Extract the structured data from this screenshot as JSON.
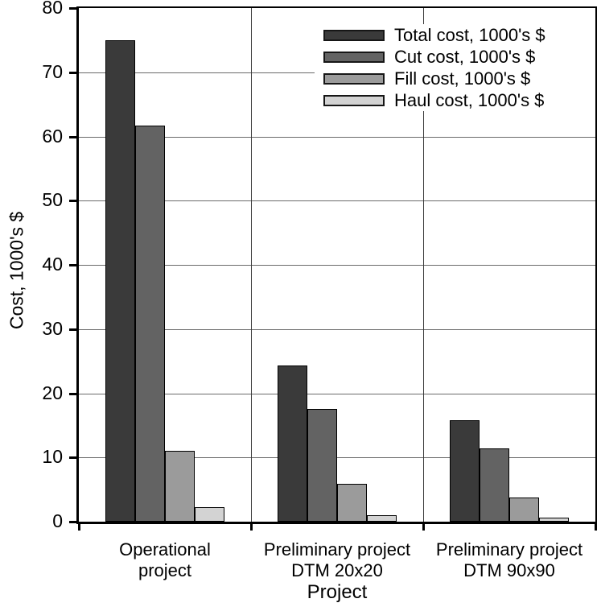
{
  "chart_data": {
    "type": "bar",
    "title": "",
    "xlabel": "Project",
    "ylabel": "Cost, 1000's $",
    "ylim": [
      0,
      80
    ],
    "ytick_step": 10,
    "grid": "horizontal",
    "legend_position": "top-right-inside",
    "background_color": "#ffffff",
    "categories": [
      [
        "Operational",
        "project"
      ],
      [
        "Preliminary project",
        "DTM 20x20"
      ],
      [
        "Preliminary project",
        "DTM 90x90"
      ]
    ],
    "series": [
      {
        "name": "Total cost, 1000's $",
        "slug": "total-cost",
        "color": "#3a3a3a",
        "values": [
          75.0,
          24.3,
          15.8
        ]
      },
      {
        "name": "Cut cost, 1000's $",
        "slug": "cut-cost",
        "color": "#636363",
        "values": [
          61.7,
          17.5,
          11.4
        ]
      },
      {
        "name": "Fill cost, 1000's $",
        "slug": "fill-cost",
        "color": "#9b9b9b",
        "values": [
          11.0,
          5.9,
          3.7
        ]
      },
      {
        "name": "Haul cost, 1000's $",
        "slug": "haul-cost",
        "color": "#d3d3d3",
        "values": [
          2.3,
          1.0,
          0.6
        ]
      }
    ]
  }
}
